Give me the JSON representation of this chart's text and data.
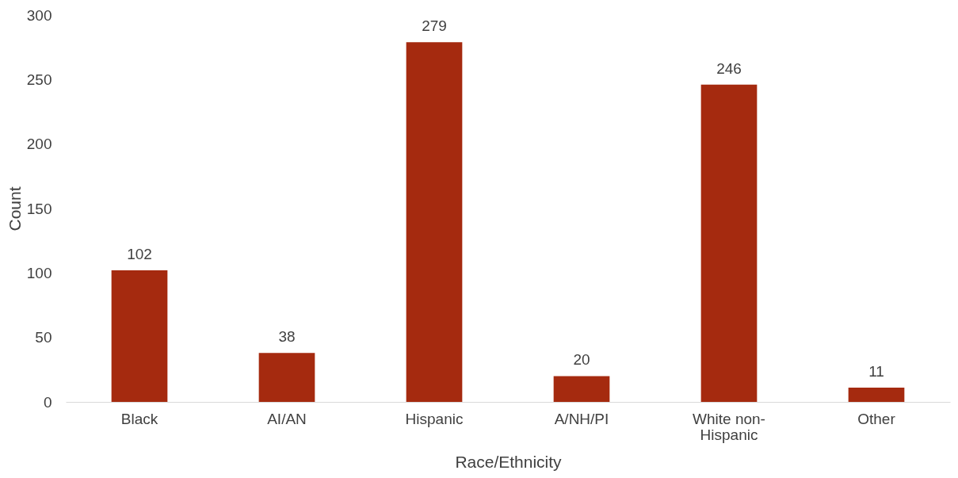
{
  "chart_data": {
    "type": "bar",
    "xlabel": "Race/Ethnicity",
    "ylabel": "Count",
    "categories": [
      "Black",
      "AI/AN",
      "Hispanic",
      "A/NH/PI",
      "White non-Hispanic",
      "Other"
    ],
    "values": [
      102,
      38,
      279,
      20,
      246,
      11
    ],
    "color": "#a52a0f",
    "ylim": [
      0,
      300
    ],
    "yticks": [
      0,
      50,
      100,
      150,
      200,
      250,
      300
    ],
    "grid": false,
    "data_labels": true
  }
}
